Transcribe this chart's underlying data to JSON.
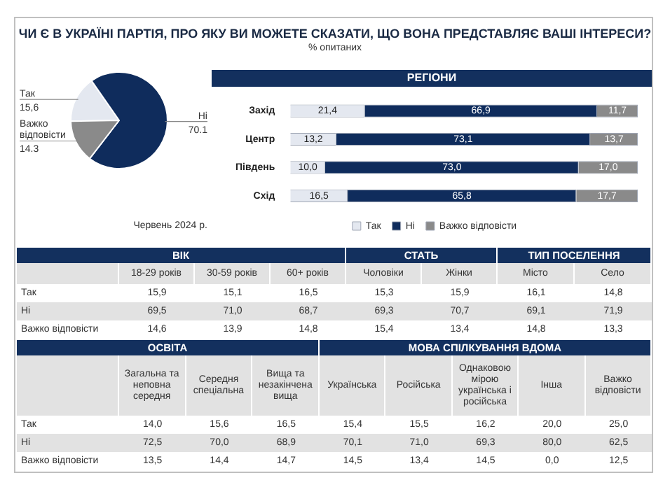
{
  "chart_data": [
    {
      "type": "other",
      "title": "ЧИ Є В УКРАЇНІ ПАРТІЯ, ПРО ЯКУ ВИ МОЖЕТЕ СКАЗАТИ, ЩО ВОНА ПРЕДСТАВЛЯЄ ВАШІ ІНТЕРЕСИ?",
      "subtitle": "% опитаних"
    },
    {
      "type": "pie",
      "categories": [
        "Так",
        "Ні",
        "Важко відповісти"
      ],
      "values": [
        15.6,
        70.1,
        14.3
      ],
      "value_labels": [
        "15,6",
        "70.1",
        "14.3"
      ],
      "colors": [
        "#e4e8f0",
        "#0f2c5c",
        "#8a8a8a"
      ],
      "annotations": [
        "Червень 2024 р."
      ]
    },
    {
      "type": "bar",
      "orientation": "horizontal",
      "stacked": true,
      "title": "РЕГІОНИ",
      "categories": [
        "Захід",
        "Центр",
        "Південь",
        "Схід"
      ],
      "series": [
        {
          "name": "Так",
          "color": "#e4e8f0",
          "values": [
            21.4,
            13.2,
            10.0,
            16.5
          ],
          "value_labels": [
            "21,4",
            "13,2",
            "10,0",
            "16,5"
          ]
        },
        {
          "name": "Ні",
          "color": "#0f2c5c",
          "values": [
            66.9,
            73.1,
            73.0,
            65.8
          ],
          "value_labels": [
            "66,9",
            "73,1",
            "73,0",
            "65,8"
          ]
        },
        {
          "name": "Важко відповісти",
          "color": "#8a8a8a",
          "values": [
            11.7,
            13.7,
            17.0,
            17.7
          ],
          "value_labels": [
            "11,7",
            "13,7",
            "17,0",
            "17,7"
          ]
        }
      ],
      "legend": "bottom",
      "tick_labels": "y"
    },
    {
      "type": "other",
      "title": "ВІК",
      "categories": [
        "18-29 років",
        "30-59 років",
        "60+ років"
      ],
      "series": [
        {
          "name": "Так",
          "values": [
            15.9,
            15.1,
            16.5
          ],
          "value_labels": [
            "15,9",
            "15,1",
            "16,5"
          ]
        },
        {
          "name": "Ні",
          "values": [
            69.5,
            71.0,
            68.7
          ],
          "value_labels": [
            "69,5",
            "71,0",
            "68,7"
          ]
        },
        {
          "name": "Важко відповісти",
          "values": [
            14.6,
            13.9,
            14.8
          ],
          "value_labels": [
            "14,6",
            "13,9",
            "14,8"
          ]
        }
      ]
    },
    {
      "type": "other",
      "title": "СТАТЬ",
      "categories": [
        "Чоловіки",
        "Жінки"
      ],
      "series": [
        {
          "values": [
            15.3,
            15.9
          ],
          "value_labels": [
            "15,3",
            "15,9"
          ]
        },
        {
          "values": [
            69.3,
            70.7
          ],
          "value_labels": [
            "69,3",
            "70,7"
          ]
        },
        {
          "values": [
            15.4,
            13.4
          ],
          "value_labels": [
            "15,4",
            "13,4"
          ]
        }
      ]
    },
    {
      "type": "other",
      "title": "ТИП ПОСЕЛЕННЯ",
      "categories": [
        "Місто",
        "Село"
      ],
      "series": [
        {
          "values": [
            16.1,
            14.8
          ],
          "value_labels": [
            "16,1",
            "14,8"
          ]
        },
        {
          "values": [
            69.1,
            71.9
          ],
          "value_labels": [
            "69,1",
            "71,9"
          ]
        },
        {
          "values": [
            14.8,
            13.3
          ],
          "value_labels": [
            "14,8",
            "13,3"
          ]
        }
      ]
    },
    {
      "type": "other",
      "title": "ОСВІТА",
      "categories": [
        "Загальна та неповна середня",
        "Середня спеціальна",
        "Вища та незакінчена вища"
      ],
      "series": [
        {
          "name": "Так",
          "values": [
            14.0,
            15.6,
            16.5
          ],
          "value_labels": [
            "14,0",
            "15,6",
            "16,5"
          ]
        },
        {
          "name": "Ні",
          "values": [
            72.5,
            70.0,
            68.9
          ],
          "value_labels": [
            "72,5",
            "70,0",
            "68,9"
          ]
        },
        {
          "name": "Важко відповісти",
          "values": [
            13.5,
            14.4,
            14.7
          ],
          "value_labels": [
            "13,5",
            "14,4",
            "14,7"
          ]
        }
      ]
    },
    {
      "type": "other",
      "title": "МОВА СПІЛКУВАННЯ ВДОМА",
      "categories": [
        "Українська",
        "Російська",
        "Однаковою мірою українська і російська",
        "Інша",
        "Важко відповісти"
      ],
      "series": [
        {
          "values": [
            15.4,
            15.5,
            16.2,
            20.0,
            25.0
          ],
          "value_labels": [
            "15,4",
            "15,5",
            "16,2",
            "20,0",
            "25,0"
          ]
        },
        {
          "values": [
            70.1,
            71.0,
            69.3,
            80.0,
            62.5
          ],
          "value_labels": [
            "70,1",
            "71,0",
            "69,3",
            "80,0",
            "62,5"
          ]
        },
        {
          "values": [
            14.5,
            13.4,
            14.5,
            0.0,
            12.5
          ],
          "value_labels": [
            "14,5",
            "13,4",
            "14,5",
            "0,0",
            "12,5"
          ]
        }
      ]
    }
  ]
}
